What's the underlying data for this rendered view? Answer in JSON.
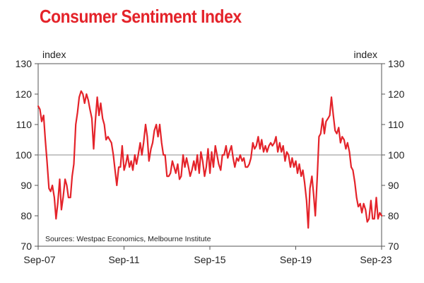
{
  "chart_data": {
    "type": "line",
    "title": "Consumer Sentiment Index",
    "ylabel_left": "index",
    "ylabel_right": "index",
    "source": "Sources: Westpac Economics, Melbourne Institute",
    "ylim": [
      70,
      130
    ],
    "yticks": [
      70,
      80,
      90,
      100,
      110,
      120,
      130
    ],
    "xlim": [
      2007.667,
      2023.667
    ],
    "xticks": [
      {
        "x": 2007.667,
        "label": "Sep-07"
      },
      {
        "x": 2011.667,
        "label": "Sep-11"
      },
      {
        "x": 2015.667,
        "label": "Sep-15"
      },
      {
        "x": 2019.667,
        "label": "Sep-19"
      },
      {
        "x": 2023.667,
        "label": "Sep-23"
      }
    ],
    "reference_line": 100,
    "grid": false,
    "series": [
      {
        "color": "#e4232a",
        "points": [
          [
            2007.67,
            116
          ],
          [
            2007.75,
            115
          ],
          [
            2007.83,
            111
          ],
          [
            2007.92,
            113
          ],
          [
            2008.0,
            105
          ],
          [
            2008.08,
            98
          ],
          [
            2008.17,
            89
          ],
          [
            2008.25,
            88
          ],
          [
            2008.33,
            90
          ],
          [
            2008.42,
            86
          ],
          [
            2008.5,
            79
          ],
          [
            2008.58,
            84
          ],
          [
            2008.67,
            92
          ],
          [
            2008.75,
            82
          ],
          [
            2008.83,
            86
          ],
          [
            2008.92,
            92
          ],
          [
            2009.0,
            90
          ],
          [
            2009.08,
            86
          ],
          [
            2009.17,
            86
          ],
          [
            2009.25,
            93
          ],
          [
            2009.33,
            97
          ],
          [
            2009.42,
            110
          ],
          [
            2009.5,
            114
          ],
          [
            2009.58,
            119
          ],
          [
            2009.67,
            121
          ],
          [
            2009.75,
            120
          ],
          [
            2009.83,
            117
          ],
          [
            2009.92,
            120
          ],
          [
            2010.0,
            118
          ],
          [
            2010.08,
            115
          ],
          [
            2010.17,
            112
          ],
          [
            2010.25,
            102
          ],
          [
            2010.33,
            111
          ],
          [
            2010.42,
            119
          ],
          [
            2010.5,
            113
          ],
          [
            2010.58,
            117
          ],
          [
            2010.67,
            112
          ],
          [
            2010.75,
            110
          ],
          [
            2010.83,
            105
          ],
          [
            2010.92,
            106
          ],
          [
            2011.0,
            105
          ],
          [
            2011.08,
            104
          ],
          [
            2011.17,
            100
          ],
          [
            2011.25,
            95
          ],
          [
            2011.33,
            90
          ],
          [
            2011.42,
            96
          ],
          [
            2011.5,
            96
          ],
          [
            2011.58,
            103
          ],
          [
            2011.67,
            95
          ],
          [
            2011.75,
            97
          ],
          [
            2011.83,
            100
          ],
          [
            2011.92,
            96
          ],
          [
            2012.0,
            98
          ],
          [
            2012.08,
            95
          ],
          [
            2012.17,
            100
          ],
          [
            2012.25,
            97
          ],
          [
            2012.33,
            100
          ],
          [
            2012.42,
            104
          ],
          [
            2012.5,
            100
          ],
          [
            2012.58,
            104
          ],
          [
            2012.67,
            110
          ],
          [
            2012.75,
            106
          ],
          [
            2012.83,
            98
          ],
          [
            2012.92,
            102
          ],
          [
            2013.0,
            104
          ],
          [
            2013.08,
            108
          ],
          [
            2013.17,
            110
          ],
          [
            2013.25,
            106
          ],
          [
            2013.33,
            110
          ],
          [
            2013.42,
            104
          ],
          [
            2013.5,
            100
          ],
          [
            2013.58,
            100
          ],
          [
            2013.67,
            93
          ],
          [
            2013.75,
            93
          ],
          [
            2013.83,
            94
          ],
          [
            2013.92,
            98
          ],
          [
            2014.0,
            96
          ],
          [
            2014.08,
            94
          ],
          [
            2014.17,
            97
          ],
          [
            2014.25,
            92
          ],
          [
            2014.33,
            93
          ],
          [
            2014.42,
            100
          ],
          [
            2014.5,
            96
          ],
          [
            2014.58,
            99
          ],
          [
            2014.67,
            96
          ],
          [
            2014.75,
            93
          ],
          [
            2014.83,
            95
          ],
          [
            2014.92,
            98
          ],
          [
            2015.0,
            95
          ],
          [
            2015.08,
            100
          ],
          [
            2015.17,
            94
          ],
          [
            2015.25,
            101
          ],
          [
            2015.33,
            98
          ],
          [
            2015.42,
            93
          ],
          [
            2015.5,
            96
          ],
          [
            2015.58,
            102
          ],
          [
            2015.67,
            94
          ],
          [
            2015.75,
            101
          ],
          [
            2015.83,
            96
          ],
          [
            2015.92,
            103
          ],
          [
            2016.0,
            100
          ],
          [
            2016.08,
            97
          ],
          [
            2016.17,
            95
          ],
          [
            2016.25,
            100
          ],
          [
            2016.33,
            100
          ],
          [
            2016.42,
            103
          ],
          [
            2016.5,
            99
          ],
          [
            2016.58,
            101
          ],
          [
            2016.67,
            103
          ],
          [
            2016.75,
            99
          ],
          [
            2016.83,
            96
          ],
          [
            2016.92,
            99
          ],
          [
            2017.0,
            98
          ],
          [
            2017.08,
            100
          ],
          [
            2017.17,
            98
          ],
          [
            2017.25,
            99
          ],
          [
            2017.33,
            96
          ],
          [
            2017.42,
            96
          ],
          [
            2017.5,
            97
          ],
          [
            2017.58,
            99
          ],
          [
            2017.67,
            104
          ],
          [
            2017.75,
            102
          ],
          [
            2017.83,
            103
          ],
          [
            2017.92,
            106
          ],
          [
            2018.0,
            102
          ],
          [
            2018.08,
            105
          ],
          [
            2018.17,
            101
          ],
          [
            2018.25,
            103
          ],
          [
            2018.33,
            101
          ],
          [
            2018.42,
            103
          ],
          [
            2018.5,
            104
          ],
          [
            2018.58,
            103
          ],
          [
            2018.67,
            104
          ],
          [
            2018.75,
            106
          ],
          [
            2018.83,
            101
          ],
          [
            2018.92,
            104
          ],
          [
            2019.0,
            101
          ],
          [
            2019.08,
            103
          ],
          [
            2019.17,
            98
          ],
          [
            2019.25,
            101
          ],
          [
            2019.33,
            100
          ],
          [
            2019.42,
            96
          ],
          [
            2019.5,
            99
          ],
          [
            2019.58,
            96
          ],
          [
            2019.67,
            98
          ],
          [
            2019.75,
            94
          ],
          [
            2019.83,
            97
          ],
          [
            2019.92,
            93
          ],
          [
            2020.0,
            95
          ],
          [
            2020.08,
            91
          ],
          [
            2020.17,
            85
          ],
          [
            2020.25,
            76
          ],
          [
            2020.33,
            89
          ],
          [
            2020.42,
            93
          ],
          [
            2020.5,
            87
          ],
          [
            2020.58,
            80
          ],
          [
            2020.67,
            93
          ],
          [
            2020.75,
            106
          ],
          [
            2020.83,
            107
          ],
          [
            2020.92,
            112
          ],
          [
            2021.0,
            107
          ],
          [
            2021.08,
            111
          ],
          [
            2021.17,
            112
          ],
          [
            2021.25,
            113
          ],
          [
            2021.33,
            119
          ],
          [
            2021.42,
            113
          ],
          [
            2021.5,
            108
          ],
          [
            2021.58,
            107
          ],
          [
            2021.67,
            109
          ],
          [
            2021.75,
            104
          ],
          [
            2021.83,
            106
          ],
          [
            2021.92,
            105
          ],
          [
            2022.0,
            102
          ],
          [
            2022.08,
            104
          ],
          [
            2022.17,
            101
          ],
          [
            2022.25,
            96
          ],
          [
            2022.33,
            95
          ],
          [
            2022.42,
            91
          ],
          [
            2022.5,
            86
          ],
          [
            2022.58,
            83
          ],
          [
            2022.67,
            84
          ],
          [
            2022.75,
            81
          ],
          [
            2022.83,
            84
          ],
          [
            2022.92,
            82
          ],
          [
            2023.0,
            78
          ],
          [
            2023.08,
            79
          ],
          [
            2023.17,
            85
          ],
          [
            2023.25,
            79
          ],
          [
            2023.33,
            79
          ],
          [
            2023.42,
            86
          ],
          [
            2023.5,
            79
          ],
          [
            2023.58,
            81
          ],
          [
            2023.67,
            80
          ]
        ]
      }
    ]
  }
}
